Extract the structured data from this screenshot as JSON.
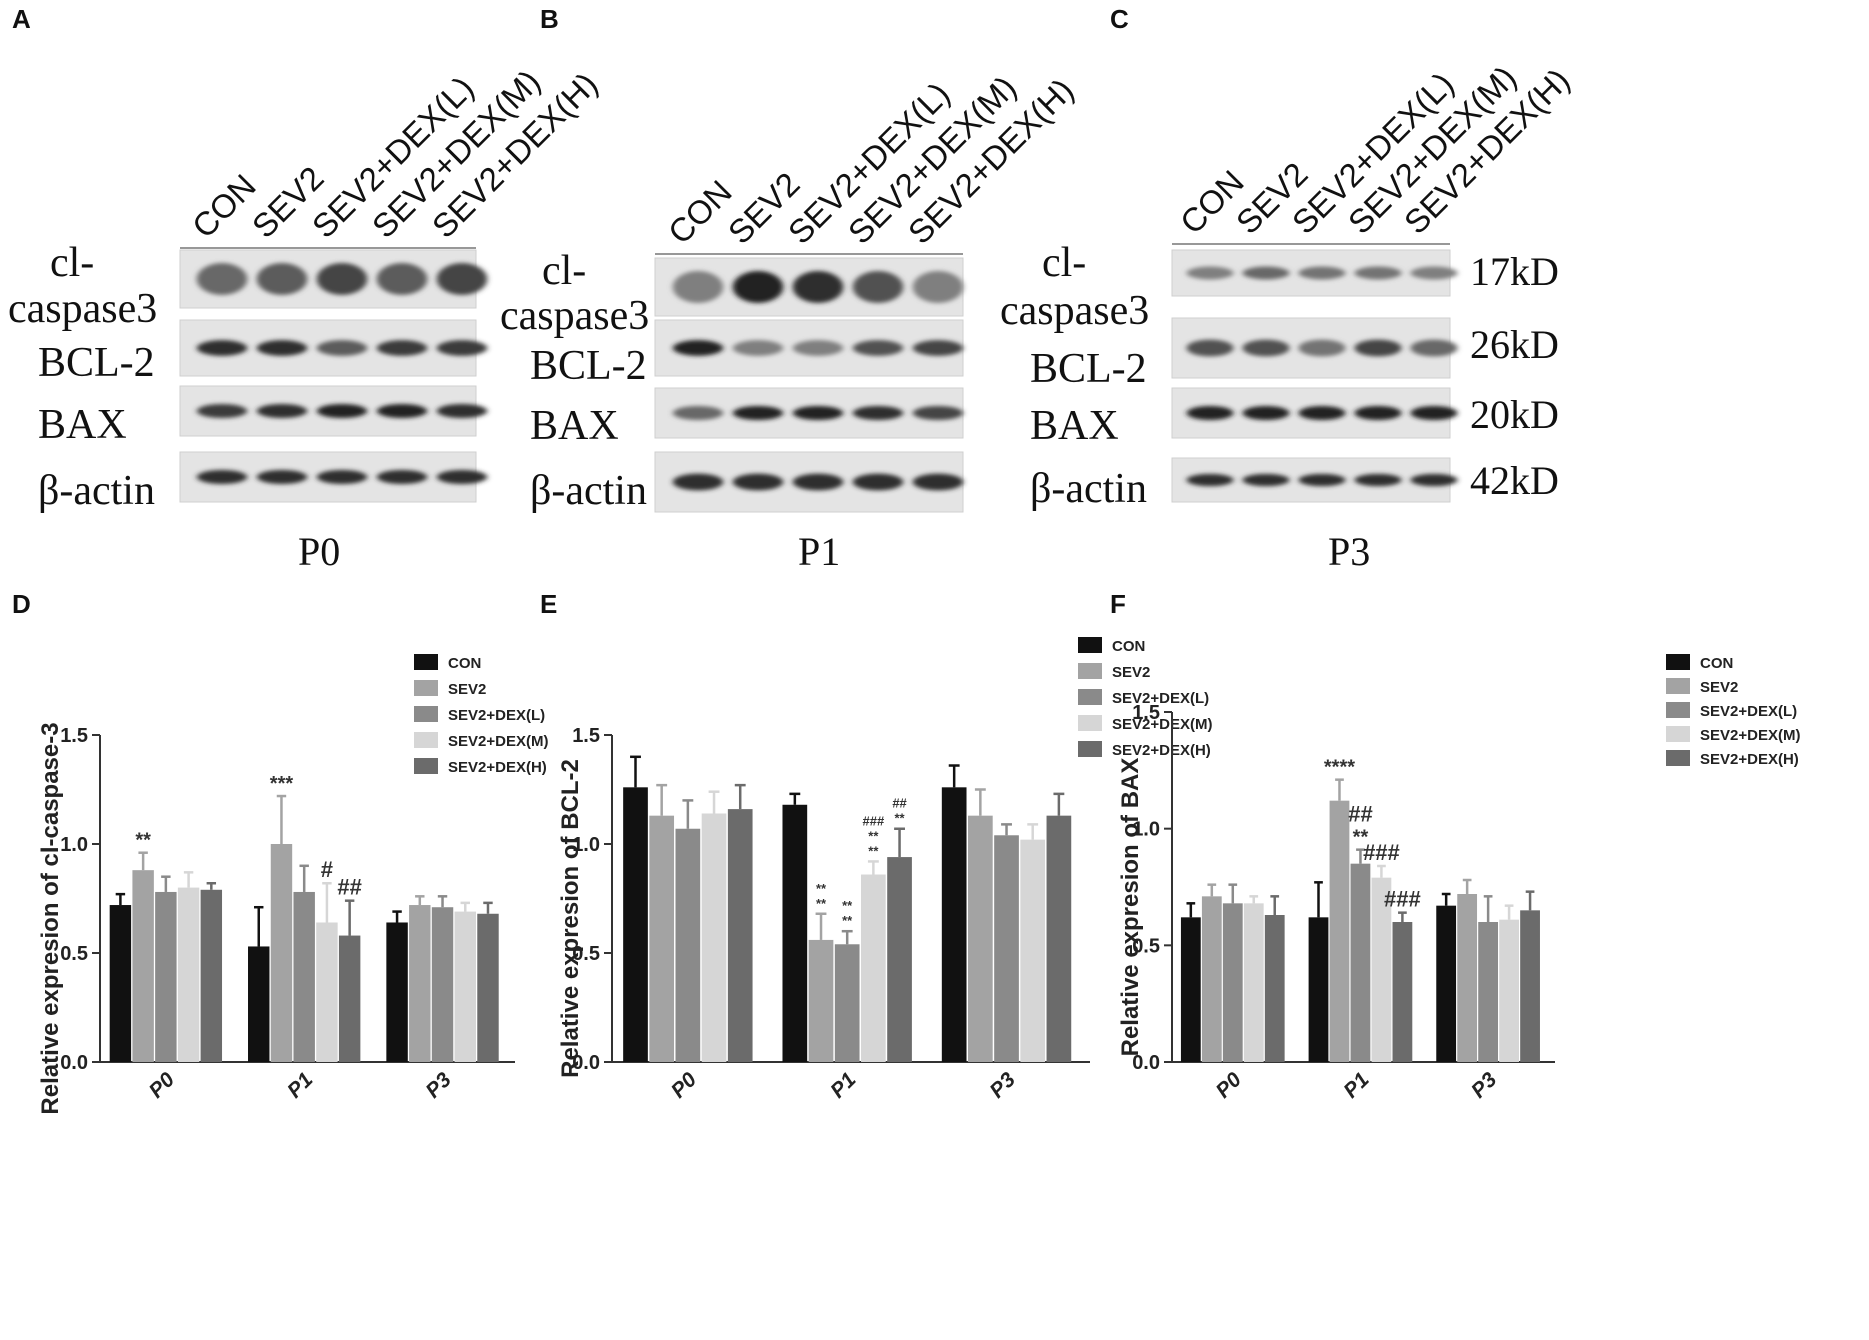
{
  "blots": [
    {
      "letter": "A",
      "stage": "P0",
      "lanes": [
        "CON",
        "SEV2",
        "SEV2+DEX(L)",
        "SEV2+DEX(M)",
        "SEV2+DEX(H)"
      ],
      "rows": [
        {
          "label_lines": [
            "cl-",
            "caspase3"
          ],
          "intensity": [
            0.55,
            0.6,
            0.7,
            0.6,
            0.7
          ]
        },
        {
          "label_lines": [
            "BCL-2"
          ],
          "intensity": [
            0.8,
            0.8,
            0.6,
            0.75,
            0.75
          ]
        },
        {
          "label_lines": [
            "BAX"
          ],
          "intensity": [
            0.75,
            0.8,
            0.85,
            0.85,
            0.8
          ]
        },
        {
          "label_lines": [
            "β-actin"
          ],
          "intensity": [
            0.8,
            0.8,
            0.8,
            0.8,
            0.8
          ]
        }
      ],
      "kd": []
    },
    {
      "letter": "B",
      "stage": "P1",
      "lanes": [
        "CON",
        "SEV2",
        "SEV2+DEX(L)",
        "SEV2+DEX(M)",
        "SEV2+DEX(H)"
      ],
      "rows": [
        {
          "label_lines": [
            "cl-",
            "caspase3"
          ],
          "intensity": [
            0.45,
            0.85,
            0.8,
            0.65,
            0.45
          ]
        },
        {
          "label_lines": [
            "BCL-2"
          ],
          "intensity": [
            0.85,
            0.45,
            0.45,
            0.65,
            0.7
          ]
        },
        {
          "label_lines": [
            "BAX"
          ],
          "intensity": [
            0.55,
            0.85,
            0.85,
            0.8,
            0.7
          ]
        },
        {
          "label_lines": [
            "β-actin"
          ],
          "intensity": [
            0.8,
            0.8,
            0.8,
            0.8,
            0.8
          ]
        }
      ],
      "kd": []
    },
    {
      "letter": "C",
      "stage": "P3",
      "lanes": [
        "CON",
        "SEV2",
        "SEV2+DEX(L)",
        "SEV2+DEX(M)",
        "SEV2+DEX(H)"
      ],
      "rows": [
        {
          "label_lines": [
            "cl-",
            "caspase3"
          ],
          "intensity": [
            0.45,
            0.55,
            0.5,
            0.5,
            0.45
          ]
        },
        {
          "label_lines": [
            "BCL-2"
          ],
          "intensity": [
            0.65,
            0.65,
            0.5,
            0.7,
            0.55
          ]
        },
        {
          "label_lines": [
            "BAX"
          ],
          "intensity": [
            0.85,
            0.85,
            0.85,
            0.85,
            0.85
          ]
        },
        {
          "label_lines": [
            "β-actin"
          ],
          "intensity": [
            0.8,
            0.8,
            0.8,
            0.8,
            0.8
          ]
        }
      ],
      "kd": [
        "17kD",
        "26kD",
        "20kD",
        "42kD"
      ]
    }
  ],
  "chart_data": [
    {
      "letter": "D",
      "type": "bar",
      "ylabel": "Relative expresion of cl-caspase-3",
      "ylim": [
        0,
        1.5
      ],
      "yticks": [
        "0.0",
        "0.5",
        "1.0",
        "1.5"
      ],
      "categories": [
        "P0",
        "P1",
        "P3"
      ],
      "series": [
        {
          "name": "CON",
          "color": "#111111",
          "values": [
            0.72,
            0.53,
            0.64
          ],
          "errors": [
            0.05,
            0.18,
            0.05
          ]
        },
        {
          "name": "SEV2",
          "color": "#a3a3a3",
          "values": [
            0.88,
            1.0,
            0.72
          ],
          "errors": [
            0.08,
            0.22,
            0.04
          ]
        },
        {
          "name": "SEV2+DEX(L)",
          "color": "#8a8a8a",
          "values": [
            0.78,
            0.78,
            0.71
          ],
          "errors": [
            0.07,
            0.12,
            0.05
          ]
        },
        {
          "name": "SEV2+DEX(M)",
          "color": "#d6d6d6",
          "values": [
            0.8,
            0.64,
            0.69
          ],
          "errors": [
            0.07,
            0.18,
            0.04
          ]
        },
        {
          "name": "SEV2+DEX(H)",
          "color": "#6b6b6b",
          "values": [
            0.79,
            0.58,
            0.68
          ],
          "errors": [
            0.03,
            0.16,
            0.05
          ]
        }
      ],
      "annotations": [
        {
          "category": 0,
          "series": 1,
          "lines": [
            "**"
          ]
        },
        {
          "category": 1,
          "series": 1,
          "lines": [
            "***"
          ]
        },
        {
          "category": 1,
          "series": 3,
          "lines": [
            "#"
          ]
        },
        {
          "category": 1,
          "series": 4,
          "lines": [
            "##"
          ]
        }
      ],
      "legend": "top-right"
    },
    {
      "letter": "E",
      "type": "bar",
      "ylabel": "Relative expresion of BCL-2",
      "ylim": [
        0,
        1.5
      ],
      "yticks": [
        "0.0",
        "0.5",
        "1.0",
        "1.5"
      ],
      "categories": [
        "P0",
        "P1",
        "P3"
      ],
      "series": [
        {
          "name": "CON",
          "color": "#111111",
          "values": [
            1.26,
            1.18,
            1.26
          ],
          "errors": [
            0.14,
            0.05,
            0.1
          ]
        },
        {
          "name": "SEV2",
          "color": "#a3a3a3",
          "values": [
            1.13,
            0.56,
            1.13
          ],
          "errors": [
            0.14,
            0.12,
            0.12
          ]
        },
        {
          "name": "SEV2+DEX(L)",
          "color": "#8a8a8a",
          "values": [
            1.07,
            0.54,
            1.04
          ],
          "errors": [
            0.13,
            0.06,
            0.05
          ]
        },
        {
          "name": "SEV2+DEX(M)",
          "color": "#d6d6d6",
          "values": [
            1.14,
            0.86,
            1.02
          ],
          "errors": [
            0.1,
            0.06,
            0.07
          ]
        },
        {
          "name": "SEV2+DEX(H)",
          "color": "#6b6b6b",
          "values": [
            1.16,
            0.94,
            1.13
          ],
          "errors": [
            0.11,
            0.13,
            0.1
          ]
        }
      ],
      "annotations": [
        {
          "category": 1,
          "series": 1,
          "lines": [
            "**",
            "**"
          ]
        },
        {
          "category": 1,
          "series": 2,
          "lines": [
            "**",
            "**"
          ]
        },
        {
          "category": 1,
          "series": 3,
          "lines": [
            "###",
            "**",
            "**"
          ]
        },
        {
          "category": 1,
          "series": 4,
          "lines": [
            "##",
            "**"
          ]
        }
      ],
      "legend": "top-right"
    },
    {
      "letter": "F",
      "type": "bar",
      "ylabel": "Relative expresion of BAX",
      "ylim": [
        0,
        1.5
      ],
      "yticks": [
        "0.0",
        "0.5",
        "1.0",
        "1.5"
      ],
      "categories": [
        "P0",
        "P1",
        "P3"
      ],
      "series": [
        {
          "name": "CON",
          "color": "#111111",
          "values": [
            0.62,
            0.62,
            0.67
          ],
          "errors": [
            0.06,
            0.15,
            0.05
          ]
        },
        {
          "name": "SEV2",
          "color": "#a3a3a3",
          "values": [
            0.71,
            1.12,
            0.72
          ],
          "errors": [
            0.05,
            0.09,
            0.06
          ]
        },
        {
          "name": "SEV2+DEX(L)",
          "color": "#8a8a8a",
          "values": [
            0.68,
            0.85,
            0.6
          ],
          "errors": [
            0.08,
            0.06,
            0.11
          ]
        },
        {
          "name": "SEV2+DEX(M)",
          "color": "#d6d6d6",
          "values": [
            0.68,
            0.79,
            0.61
          ],
          "errors": [
            0.03,
            0.05,
            0.06
          ]
        },
        {
          "name": "SEV2+DEX(H)",
          "color": "#6b6b6b",
          "values": [
            0.63,
            0.6,
            0.65
          ],
          "errors": [
            0.08,
            0.04,
            0.08
          ]
        }
      ],
      "annotations": [
        {
          "category": 1,
          "series": 1,
          "lines": [
            "****"
          ]
        },
        {
          "category": 1,
          "series": 2,
          "lines": [
            "##",
            "**"
          ]
        },
        {
          "category": 1,
          "series": 3,
          "lines": [
            "###"
          ]
        },
        {
          "category": 1,
          "series": 4,
          "lines": [
            "###"
          ]
        }
      ],
      "legend": "top-right"
    }
  ]
}
